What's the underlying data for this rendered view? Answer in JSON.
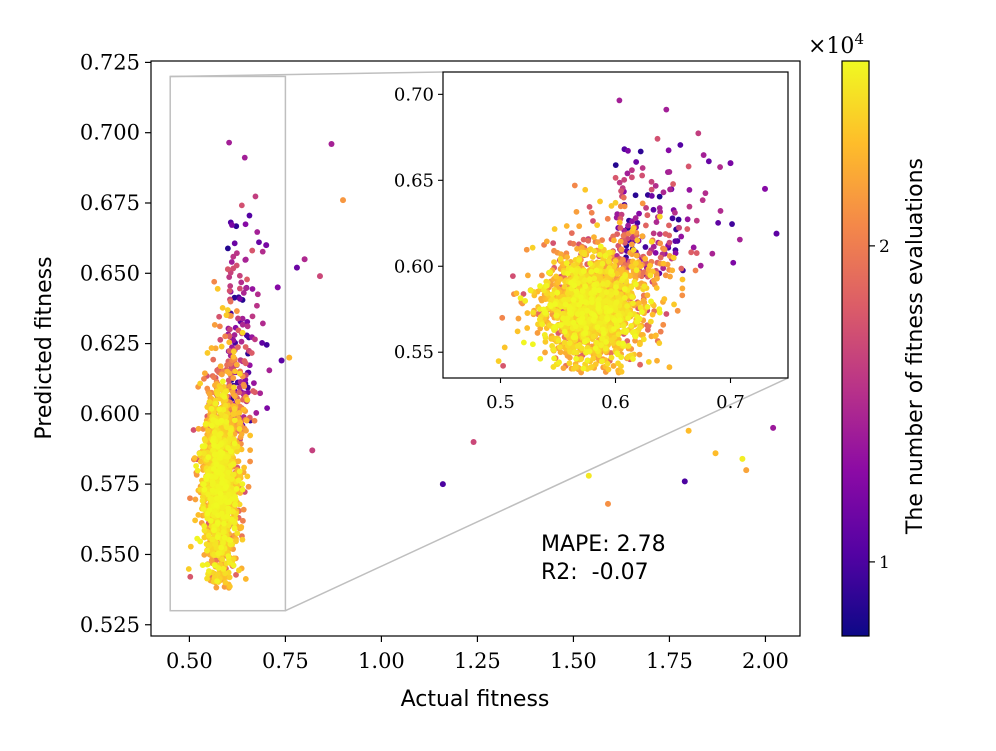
{
  "chart_data": {
    "type": "scatter",
    "main": {
      "xlabel": "Actual fitness",
      "ylabel": "Predicted fitness",
      "xlim": [
        0.4,
        2.09
      ],
      "ylim": [
        0.521,
        0.7255
      ],
      "xticks": [
        0.5,
        0.75,
        1.0,
        1.25,
        1.5,
        1.75,
        2.0
      ],
      "xtick_labels": [
        "0.50",
        "0.75",
        "1.00",
        "1.25",
        "1.50",
        "1.75",
        "2.00"
      ],
      "yticks": [
        0.525,
        0.55,
        0.575,
        0.6,
        0.625,
        0.65,
        0.675,
        0.7,
        0.725
      ],
      "ytick_labels": [
        "0.525",
        "0.550",
        "0.575",
        "0.600",
        "0.625",
        "0.650",
        "0.675",
        "0.700",
        "0.725"
      ]
    },
    "zoom_region": {
      "xlim": [
        0.45,
        0.75
      ],
      "ylim": [
        0.53,
        0.72
      ]
    },
    "inset": {
      "xlim": [
        0.45,
        0.75
      ],
      "ylim": [
        0.535,
        0.713
      ],
      "xticks": [
        0.5,
        0.6,
        0.7
      ],
      "xtick_labels": [
        "0.5",
        "0.6",
        "0.7"
      ],
      "yticks": [
        0.55,
        0.6,
        0.65,
        0.7
      ],
      "ytick_labels": [
        "0.55",
        "0.60",
        "0.65",
        "0.70"
      ]
    },
    "annotation": {
      "mape_label": "MAPE: 2.78",
      "r2_label": "R2:  -0.07"
    },
    "colorbar": {
      "label": "The number of fitness evaluations",
      "scale": "log",
      "multiplier": "×10",
      "multiplier_exp": "4",
      "range": [
        0.85,
        3.0
      ],
      "ticks": [
        1,
        2
      ],
      "tick_labels": [
        "1",
        "2"
      ],
      "colormap": "plasma",
      "colormap_stops": [
        "#0d0887",
        "#5302a3",
        "#8b0aa5",
        "#b83289",
        "#db5c68",
        "#f48849",
        "#febd2a",
        "#f0f921"
      ]
    },
    "outliers": [
      {
        "x": 0.87,
        "y": 0.696,
        "c": 1.35
      },
      {
        "x": 0.9,
        "y": 0.676,
        "c": 2.2
      },
      {
        "x": 0.7,
        "y": 0.66,
        "c": 1.15
      },
      {
        "x": 0.8,
        "y": 0.655,
        "c": 1.4
      },
      {
        "x": 0.78,
        "y": 0.652,
        "c": 1.1
      },
      {
        "x": 0.84,
        "y": 0.649,
        "c": 1.6
      },
      {
        "x": 0.73,
        "y": 0.645,
        "c": 1.2
      },
      {
        "x": 0.76,
        "y": 0.62,
        "c": 2.45
      },
      {
        "x": 0.74,
        "y": 0.619,
        "c": 1.05
      },
      {
        "x": 0.82,
        "y": 0.587,
        "c": 1.55
      },
      {
        "x": 1.16,
        "y": 0.575,
        "c": 1.0
      },
      {
        "x": 1.24,
        "y": 0.59,
        "c": 1.6
      },
      {
        "x": 1.54,
        "y": 0.578,
        "c": 2.85
      },
      {
        "x": 1.59,
        "y": 0.568,
        "c": 2.15
      },
      {
        "x": 1.79,
        "y": 0.576,
        "c": 1.0
      },
      {
        "x": 1.8,
        "y": 0.594,
        "c": 2.5
      },
      {
        "x": 1.87,
        "y": 0.586,
        "c": 2.5
      },
      {
        "x": 1.94,
        "y": 0.584,
        "c": 2.9
      },
      {
        "x": 1.95,
        "y": 0.58,
        "c": 2.3
      },
      {
        "x": 2.02,
        "y": 0.595,
        "c": 1.3
      }
    ],
    "cluster": {
      "description_center": [
        0.58,
        0.575
      ],
      "x_spread": 0.03,
      "y_spread": 0.025,
      "n_points": 2200
    }
  }
}
